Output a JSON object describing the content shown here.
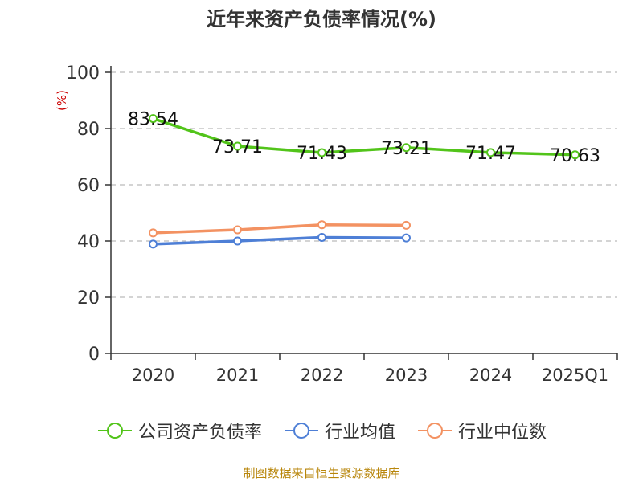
{
  "chart_data": {
    "type": "line",
    "title": "近年来资产负债率情况(%)",
    "ylabel": "(%)",
    "categories": [
      "2020",
      "2021",
      "2022",
      "2023",
      "2024",
      "2025Q1"
    ],
    "ylim": [
      0,
      100
    ],
    "yticks": [
      0,
      20,
      40,
      60,
      80,
      100
    ],
    "grid": true,
    "legend_position": "bottom",
    "series": [
      {
        "name": "公司资产负债率",
        "color": "#52c41a",
        "values": [
          83.54,
          73.71,
          71.43,
          73.21,
          71.47,
          70.63
        ],
        "show_labels": true
      },
      {
        "name": "行业均值",
        "color": "#4e7fd6",
        "values": [
          38.9,
          40.0,
          41.3,
          41.1,
          null,
          null
        ],
        "show_labels": false
      },
      {
        "name": "行业中位数",
        "color": "#f39262",
        "values": [
          42.9,
          44.0,
          45.8,
          45.6,
          null,
          null
        ],
        "show_labels": false
      }
    ]
  },
  "legend": {
    "company": "公司资产负债率",
    "industry_mean": "行业均值",
    "industry_median": "行业中位数"
  },
  "source": "制图数据来自恒生聚源数据库"
}
